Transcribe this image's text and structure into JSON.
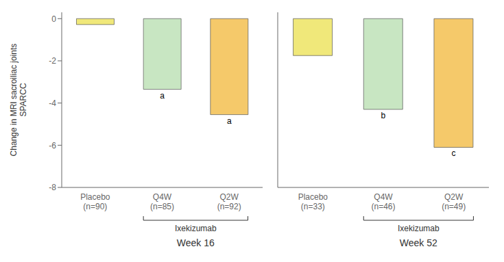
{
  "chart_data": [
    {
      "type": "bar",
      "categories": [
        "Placebo\n(n=90)",
        "Q4W\n(n=85)",
        "Q2W\n(n=92)"
      ],
      "values": [
        -0.28,
        -3.35,
        -4.55
      ],
      "colors": [
        "#f0e87a",
        "#c8e6c2",
        "#f5c96a"
      ],
      "annotations": [
        {
          "category": "Q4W\n(n=85)",
          "text": "a"
        },
        {
          "category": "Q2W\n(n=92)",
          "text": "a"
        },
        {
          "text": "Ixekizumab",
          "categories": [
            "Q4W\n(n=85)",
            "Q2W\n(n=92)"
          ]
        }
      ],
      "xlabel": "Week 16",
      "ylabel": "Change in MRI sacroiliac joints\nSPARCC",
      "ylim": [
        -8,
        0.3
      ],
      "yticks": [
        0,
        -2,
        -4,
        -6,
        -8
      ],
      "grid": false
    },
    {
      "type": "bar",
      "categories": [
        "Placebo\n(n=33)",
        "Q4W\n(n=46)",
        "Q2W\n(n=49)"
      ],
      "values": [
        -1.75,
        -4.3,
        -6.1
      ],
      "colors": [
        "#f0e87a",
        "#c8e6c2",
        "#f5c96a"
      ],
      "annotations": [
        {
          "category": "Q4W\n(n=46)",
          "text": "b"
        },
        {
          "category": "Q2W\n(n=49)",
          "text": "c"
        },
        {
          "text": "Ixekizumab",
          "categories": [
            "Q4W\n(n=46)",
            "Q2W\n(n=49)"
          ]
        }
      ],
      "xlabel": "Week 52",
      "ylim": [
        -8,
        0.3
      ],
      "yticks": [
        0,
        -2,
        -4,
        -6,
        -8
      ],
      "grid": false,
      "tick_labels": "x"
    }
  ]
}
